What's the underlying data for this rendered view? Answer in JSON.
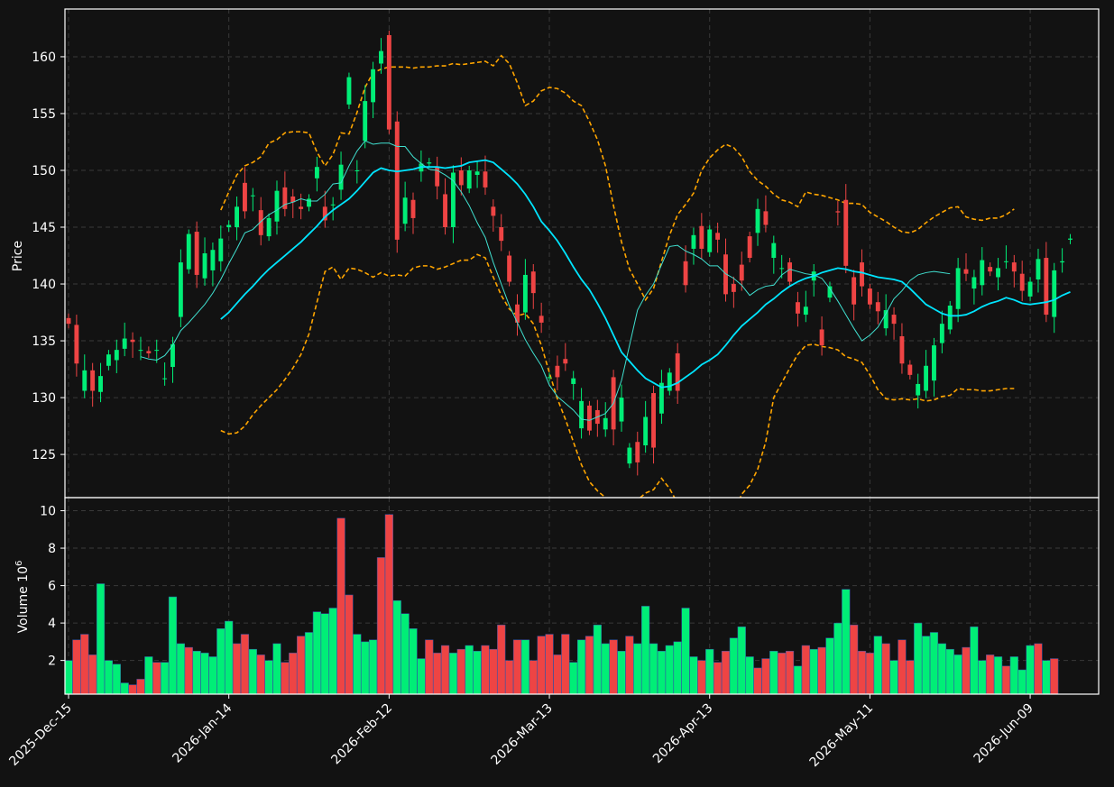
{
  "chart_data": {
    "type": "candlestick",
    "price_panel": {
      "ylabel": "Price",
      "ylim": [
        121.2,
        164.2
      ],
      "yticks": [
        125,
        130,
        135,
        140,
        145,
        150,
        155,
        160
      ],
      "grid": true
    },
    "volume_panel": {
      "ylabel": "Volume  10",
      "ylabel_exponent": "6",
      "ylim": [
        0.2,
        10.7
      ],
      "yticks": [
        2,
        4,
        6,
        8,
        10
      ],
      "grid": true
    },
    "x_tick_labels": [
      "2025-Dec-15",
      "2026-Jan-14",
      "2026-Feb-12",
      "2026-Mar-13",
      "2026-Apr-13",
      "2026-May-11",
      "2026-Jun-09"
    ],
    "x_tick_index": [
      0,
      20,
      40,
      60,
      80,
      100,
      120
    ],
    "colors": {
      "up": "#00ee77",
      "down": "#ee4444",
      "ma_short": "#40e0d0",
      "ma_long": "#00e5ff",
      "bands": "#ffa500",
      "background": "#121212"
    },
    "candles": {
      "open": [
        137.0,
        136.4,
        130.6,
        132.4,
        130.5,
        132.8,
        133.3,
        134.3,
        135.1,
        134.2,
        134.1,
        134.2,
        131.7,
        132.7,
        137.1,
        141.3,
        144.6,
        140.5,
        141.2,
        142.0,
        145.0,
        145.0,
        148.9,
        147.8,
        146.5,
        144.2,
        145.5,
        148.5,
        147.7,
        146.8,
        146.8,
        149.3,
        146.8,
        147.0,
        148.3,
        155.8,
        150.0,
        152.6,
        156.0,
        159.4,
        161.9,
        154.3,
        145.3,
        147.4,
        149.9,
        150.6,
        150.3,
        147.9,
        145.0,
        150.0,
        148.4,
        149.6,
        149.9,
        146.8,
        145.0,
        142.5,
        138.2,
        137.5,
        141.1,
        137.2,
        131.8,
        132.8,
        133.4,
        131.2,
        127.3,
        129.3,
        128.9,
        127.2,
        131.8,
        127.9,
        124.2,
        126.1,
        125.8,
        130.4,
        128.6,
        130.6,
        133.9,
        142.0,
        143.1,
        145.1,
        142.8,
        144.5,
        142.6,
        140.0,
        141.7,
        144.2,
        144.5,
        146.4,
        142.3,
        141.4,
        141.9,
        138.4,
        137.3,
        140.3,
        136.0,
        138.8,
        146.4,
        147.4,
        140.6,
        141.9,
        139.6,
        138.4,
        136.1,
        137.3,
        135.4,
        132.9,
        130.2,
        130.6,
        131.5,
        134.8,
        136.0,
        137.8,
        141.3,
        139.6,
        139.9,
        141.5,
        140.6,
        142.0,
        141.9,
        140.9,
        138.9,
        140.4,
        142.3,
        137.1,
        141.9,
        143.9
      ],
      "close": [
        136.5,
        133.0,
        132.4,
        130.6,
        131.9,
        133.8,
        134.2,
        135.2,
        134.9,
        134.2,
        133.9,
        134.2,
        131.7,
        134.7,
        141.9,
        144.4,
        140.8,
        142.7,
        143.0,
        144.0,
        145.2,
        146.8,
        146.4,
        147.8,
        144.3,
        145.8,
        148.2,
        146.6,
        147.2,
        146.6,
        147.5,
        150.3,
        145.6,
        147.0,
        150.5,
        158.2,
        150.0,
        156.1,
        158.9,
        160.5,
        153.6,
        143.9,
        147.6,
        145.8,
        150.6,
        150.7,
        148.6,
        145.0,
        149.8,
        148.7,
        150.0,
        149.9,
        148.5,
        146.0,
        143.8,
        140.2,
        136.6,
        140.8,
        139.2,
        136.6,
        131.8,
        131.8,
        133.0,
        131.7,
        129.7,
        127.1,
        127.7,
        128.2,
        127.2,
        130.0,
        125.6,
        124.3,
        128.3,
        125.6,
        131.3,
        132.2,
        130.6,
        139.9,
        144.3,
        143.1,
        144.8,
        143.9,
        139.1,
        139.3,
        140.3,
        142.3,
        146.6,
        145.2,
        143.6,
        141.4,
        140.2,
        137.4,
        138.0,
        141.1,
        134.6,
        139.8,
        146.3,
        141.6,
        138.2,
        139.8,
        138.2,
        137.6,
        137.7,
        136.5,
        133.0,
        132.0,
        131.2,
        132.8,
        134.6,
        136.5,
        138.1,
        141.4,
        140.9,
        140.6,
        142.1,
        141.1,
        141.4,
        142.0,
        141.1,
        139.4,
        140.2,
        142.2,
        137.3,
        141.2,
        142.0,
        144.0
      ]
    },
    "volume_millions": [
      2.0,
      3.1,
      3.4,
      2.3,
      6.1,
      2.0,
      1.8,
      0.8,
      0.7,
      1.0,
      2.2,
      1.9,
      1.9,
      5.4,
      2.9,
      2.7,
      2.5,
      2.4,
      2.2,
      3.7,
      4.1,
      2.9,
      3.4,
      2.6,
      2.3,
      2.0,
      2.9,
      1.9,
      2.4,
      3.3,
      3.5,
      4.6,
      4.5,
      4.8,
      9.6,
      5.5,
      3.4,
      3.0,
      3.1,
      7.5,
      9.8,
      5.2,
      4.5,
      3.7,
      2.1,
      3.1,
      2.4,
      2.8,
      2.4,
      2.6,
      2.8,
      2.5,
      2.8,
      2.6,
      3.9,
      2.0,
      3.1,
      3.1,
      2.0,
      3.3,
      3.4,
      2.3,
      3.4,
      1.9,
      3.1,
      3.3,
      3.9,
      2.9,
      3.1,
      2.5,
      3.3,
      2.9,
      4.9,
      2.9,
      2.5,
      2.8,
      3.0,
      4.8,
      2.2,
      2.0,
      2.6,
      1.9,
      2.5,
      3.2,
      3.8,
      2.2,
      1.6,
      2.1,
      2.5,
      2.4,
      2.5,
      1.7,
      2.8,
      2.6,
      2.7,
      3.2,
      4.0,
      5.8,
      3.9,
      2.5,
      2.4,
      3.3,
      2.9,
      2.0,
      3.1,
      2.0,
      4.0,
      3.3,
      3.5,
      2.9,
      2.6,
      2.3,
      2.7,
      3.8,
      2.0,
      2.3,
      2.2,
      1.7,
      2.2,
      1.5,
      2.8,
      2.9,
      2.0,
      2.1
    ],
    "volume_up": [
      true,
      false,
      false,
      false,
      true,
      true,
      true,
      true,
      false,
      false,
      true,
      false,
      true,
      true,
      true,
      false,
      true,
      true,
      true,
      true,
      true,
      false,
      false,
      true,
      false,
      true,
      true,
      false,
      false,
      false,
      true,
      true,
      true,
      true,
      false,
      false,
      true,
      true,
      true,
      false,
      false,
      true,
      true,
      true,
      true,
      false,
      false,
      false,
      true,
      false,
      true,
      true,
      false,
      false,
      false,
      false,
      false,
      true,
      false,
      false,
      false,
      false,
      false,
      true,
      true,
      false,
      true,
      true,
      false,
      true,
      false,
      true,
      true,
      true,
      true,
      true,
      true,
      true,
      true,
      false,
      true,
      false,
      false,
      true,
      true,
      true,
      false,
      false,
      true,
      false,
      false,
      true,
      false,
      true,
      false,
      true,
      true,
      true,
      false,
      false,
      false,
      true,
      false,
      true,
      false,
      false,
      true,
      true,
      true,
      true,
      true,
      true,
      false,
      true,
      true,
      false,
      true,
      false,
      true,
      true,
      true,
      false,
      true,
      false
    ],
    "ma_short_start": 9,
    "ma_short": [
      133.6,
      133.4,
      133.3,
      133.7,
      134.6,
      135.9,
      136.6,
      137.4,
      138.2,
      139.2,
      140.4,
      141.8,
      143.1,
      144.5,
      144.8,
      145.5,
      146.1,
      146.5,
      147.0,
      147.2,
      147.5,
      147.3,
      147.3,
      147.9,
      148.8,
      148.9,
      150.4,
      151.7,
      152.6,
      152.3,
      152.4,
      152.4,
      152.1,
      152.1,
      151.2,
      150.6,
      150.1,
      150.0,
      149.6,
      149.1,
      148.1,
      146.9,
      145.4,
      144.1,
      141.9,
      140.0,
      138.1,
      136.6,
      135.1,
      133.9,
      132.8,
      131.1,
      130.1,
      129.5,
      128.9,
      128.1,
      128.0,
      128.3,
      128.6,
      129.5,
      131.5,
      134.6,
      137.7,
      139.0,
      140.0,
      141.7,
      143.3,
      143.4,
      142.9,
      142.6,
      142.2,
      141.6,
      141.6,
      140.9,
      140.5,
      139.9,
      139.0,
      139.5,
      139.8,
      139.9,
      140.8,
      141.3,
      141.1,
      140.9,
      140.8,
      140.5,
      139.6,
      138.5,
      137.3,
      136.1,
      135.0,
      135.5,
      136.2,
      137.4,
      138.7,
      139.4,
      140.3,
      140.8,
      141.0,
      141.1,
      141.0,
      140.9
    ],
    "ma_long_start": 19,
    "ma_long": [
      136.9,
      137.5,
      138.3,
      139.1,
      139.8,
      140.6,
      141.3,
      141.9,
      142.5,
      143.1,
      143.7,
      144.4,
      145.1,
      145.9,
      146.5,
      147.0,
      147.5,
      148.2,
      149.0,
      149.8,
      150.2,
      150.0,
      149.9,
      150.0,
      150.1,
      150.3,
      150.3,
      150.3,
      150.2,
      150.3,
      150.4,
      150.7,
      150.8,
      150.9,
      150.7,
      150.1,
      149.5,
      148.8,
      147.9,
      146.8,
      145.5,
      144.7,
      143.8,
      142.7,
      141.5,
      140.4,
      139.5,
      138.3,
      137.0,
      135.5,
      134.0,
      133.2,
      132.4,
      131.7,
      131.3,
      130.9,
      131.0,
      131.3,
      131.8,
      132.3,
      132.9,
      133.3,
      133.8,
      134.6,
      135.5,
      136.3,
      136.9,
      137.5,
      138.2,
      138.7,
      139.3,
      139.8,
      140.2,
      140.5,
      140.7,
      141.0,
      141.2,
      141.4,
      141.3,
      141.1,
      141.0,
      140.8,
      140.6,
      140.5,
      140.4,
      140.2,
      139.6,
      138.9,
      138.2,
      137.8,
      137.4,
      137.2,
      137.2,
      137.3,
      137.6,
      138.0,
      138.3,
      138.5,
      138.8,
      138.6,
      138.3,
      138.2,
      138.3,
      138.4,
      138.6,
      139.0,
      139.3
    ],
    "upper_band": [
      146.5,
      148.1,
      149.6,
      150.4,
      150.7,
      151.2,
      152.4,
      152.7,
      153.3,
      153.4,
      153.4,
      153.3,
      151.6,
      150.4,
      151.4,
      153.3,
      153.2,
      155.1,
      157.3,
      158.6,
      158.9,
      159.1,
      159.1,
      159.1,
      159.0,
      159.1,
      159.1,
      159.2,
      159.2,
      159.4,
      159.3,
      159.4,
      159.5,
      159.6,
      159.2,
      160.1,
      159.4,
      157.7,
      155.7,
      156.1,
      157.0,
      157.3,
      157.2,
      156.8,
      156.1,
      155.7,
      154.3,
      152.7,
      150.4,
      146.9,
      143.7,
      141.3,
      140.0,
      138.6,
      139.6,
      142.0,
      144.3,
      146.1,
      147.0,
      148.0,
      150.0,
      151.1,
      151.8,
      152.3,
      152.0,
      151.2,
      149.9,
      149.1,
      148.6,
      147.9,
      147.4,
      147.2,
      146.8,
      148.1,
      147.9,
      147.8,
      147.6,
      147.4,
      147.1,
      147.1,
      147.0,
      146.3,
      145.9,
      145.5,
      145.0,
      144.6,
      144.5,
      144.8,
      145.4,
      145.9,
      146.3,
      146.7,
      146.8,
      145.9,
      145.7,
      145.6,
      145.8,
      145.8,
      146.1,
      146.6
    ],
    "lower_band": [
      127.1,
      126.8,
      126.9,
      127.5,
      128.5,
      129.3,
      130.0,
      130.7,
      131.6,
      132.6,
      133.8,
      135.6,
      138.4,
      141.1,
      141.5,
      140.4,
      141.4,
      141.3,
      141.0,
      140.6,
      141.0,
      140.7,
      140.8,
      140.7,
      141.4,
      141.6,
      141.6,
      141.3,
      141.5,
      141.8,
      142.1,
      142.1,
      142.6,
      142.3,
      140.6,
      139.0,
      137.8,
      137.2,
      137.4,
      136.5,
      134.6,
      132.2,
      129.9,
      128.1,
      126.1,
      124.1,
      122.6,
      121.8,
      121.2,
      120.1,
      119.6,
      120.3,
      121.0,
      121.6,
      121.9,
      122.9,
      122.0,
      120.7,
      119.4,
      118.5,
      117.7,
      117.2,
      117.4,
      118.2,
      119.8,
      121.5,
      122.3,
      123.7,
      126.1,
      130.0,
      131.3,
      132.6,
      133.8,
      134.6,
      134.7,
      134.5,
      134.4,
      134.2,
      133.6,
      133.4,
      133.1,
      132.0,
      130.7,
      129.9,
      129.8,
      129.9,
      129.8,
      129.9,
      129.7,
      129.8,
      130.1,
      130.2,
      130.8,
      130.7,
      130.7,
      130.6,
      130.6,
      130.7,
      130.8,
      130.8
    ]
  }
}
